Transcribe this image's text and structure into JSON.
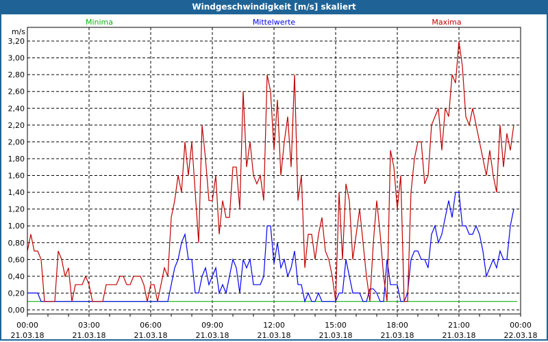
{
  "window": {
    "title": "Windgeschwindigkeit [m/s] skaliert"
  },
  "chart_data": {
    "type": "line",
    "title": "Windgeschwindigkeit [m/s] skaliert",
    "ylabel": "m/s",
    "xlabel": "",
    "ylim": [
      0,
      3.2
    ],
    "yticks": [
      "0,00",
      "0,20",
      "0,40",
      "0,60",
      "0,80",
      "1,00",
      "1,20",
      "1,40",
      "1,60",
      "1,80",
      "2,00",
      "2,20",
      "2,40",
      "2,60",
      "2,80",
      "3,00",
      "3,20"
    ],
    "xticks": [
      {
        "time": "00:00",
        "date": "21.03.18"
      },
      {
        "time": "03:00",
        "date": "21.03.18"
      },
      {
        "time": "06:00",
        "date": "21.03.18"
      },
      {
        "time": "09:00",
        "date": "21.03.18"
      },
      {
        "time": "12:00",
        "date": "21.03.18"
      },
      {
        "time": "15:00",
        "date": "21.03.18"
      },
      {
        "time": "18:00",
        "date": "21.03.18"
      },
      {
        "time": "21:00",
        "date": "21.03.18"
      },
      {
        "time": "00:00",
        "date": "22.03.18"
      }
    ],
    "x_range_hours": [
      0,
      24
    ],
    "interval_minutes": 10,
    "grid": true,
    "legend_placement": "top",
    "series": [
      {
        "name": "Minima",
        "color": "#10b010",
        "values": [
          0.1,
          0.1
        ]
      },
      {
        "name": "Mittelwerte",
        "color": "#0000ee",
        "values": [
          0.2,
          0.2,
          0.2,
          0.2,
          0.1,
          0.1,
          0.1,
          0.1,
          0.1,
          0.1,
          0.1,
          0.1,
          0.1,
          0.1,
          0.1,
          0.1,
          0.1,
          0.1,
          0.1,
          0.1,
          0.1,
          0.1,
          0.1,
          0.1,
          0.1,
          0.1,
          0.1,
          0.1,
          0.1,
          0.1,
          0.1,
          0.1,
          0.1,
          0.1,
          0.1,
          0.1,
          0.1,
          0.1,
          0.1,
          0.1,
          0.1,
          0.1,
          0.3,
          0.5,
          0.6,
          0.8,
          0.9,
          0.6,
          0.6,
          0.2,
          0.2,
          0.4,
          0.5,
          0.3,
          0.4,
          0.5,
          0.2,
          0.3,
          0.2,
          0.4,
          0.6,
          0.5,
          0.2,
          0.6,
          0.5,
          0.6,
          0.3,
          0.3,
          0.3,
          0.4,
          1.0,
          1.0,
          0.55,
          0.8,
          0.5,
          0.6,
          0.4,
          0.5,
          0.7,
          0.3,
          0.3,
          0.1,
          0.2,
          0.1,
          0.1,
          0.2,
          0.1,
          0.1,
          0.1,
          0.1,
          0.1,
          0.2,
          0.2,
          0.6,
          0.4,
          0.2,
          0.2,
          0.2,
          0.1,
          0.1,
          0.25,
          0.25,
          0.2,
          0.1,
          0.1,
          0.6,
          0.3,
          0.3,
          0.3,
          0.1,
          0.1,
          0.2,
          0.6,
          0.7,
          0.7,
          0.6,
          0.6,
          0.5,
          0.9,
          1.0,
          0.8,
          0.9,
          1.1,
          1.3,
          1.1,
          1.4,
          1.4,
          1.0,
          1.0,
          0.9,
          0.9,
          1.0,
          0.9,
          0.7,
          0.4,
          0.5,
          0.6,
          0.5,
          0.7,
          0.6,
          0.6,
          1.0,
          1.2
        ]
      },
      {
        "name": "Maxima",
        "color": "#c00000",
        "values": [
          0.7,
          0.9,
          0.7,
          0.7,
          0.6,
          0.1,
          0.1,
          0.1,
          0.1,
          0.7,
          0.6,
          0.4,
          0.5,
          0.1,
          0.3,
          0.3,
          0.3,
          0.4,
          0.3,
          0.1,
          0.1,
          0.1,
          0.1,
          0.3,
          0.3,
          0.3,
          0.3,
          0.4,
          0.4,
          0.3,
          0.3,
          0.4,
          0.4,
          0.4,
          0.3,
          0.1,
          0.3,
          0.3,
          0.1,
          0.3,
          0.5,
          0.4,
          1.1,
          1.3,
          1.6,
          1.4,
          2.0,
          1.6,
          2.0,
          1.4,
          0.8,
          2.2,
          1.8,
          1.3,
          1.3,
          1.6,
          0.9,
          1.3,
          1.1,
          1.1,
          1.7,
          1.7,
          1.2,
          2.6,
          1.7,
          2.0,
          1.6,
          1.5,
          1.6,
          1.3,
          2.8,
          2.6,
          1.9,
          2.5,
          1.6,
          2.0,
          2.3,
          1.7,
          2.8,
          1.3,
          1.6,
          0.5,
          0.9,
          0.9,
          0.6,
          0.9,
          1.1,
          0.7,
          0.6,
          0.4,
          0.1,
          1.4,
          0.6,
          1.5,
          1.3,
          0.6,
          0.9,
          1.2,
          0.8,
          0.4,
          0.1,
          0.8,
          1.3,
          0.9,
          0.4,
          0.1,
          1.9,
          1.7,
          1.2,
          1.6,
          0.1,
          0.1,
          1.4,
          1.8,
          2.0,
          2.0,
          1.5,
          1.6,
          2.2,
          2.3,
          2.4,
          1.9,
          2.4,
          2.3,
          2.8,
          2.7,
          3.2,
          2.9,
          2.3,
          2.2,
          2.4,
          2.2,
          2.0,
          1.8,
          1.6,
          1.9,
          1.6,
          1.4,
          2.2,
          1.7,
          2.1,
          1.9,
          2.2
        ]
      }
    ]
  }
}
